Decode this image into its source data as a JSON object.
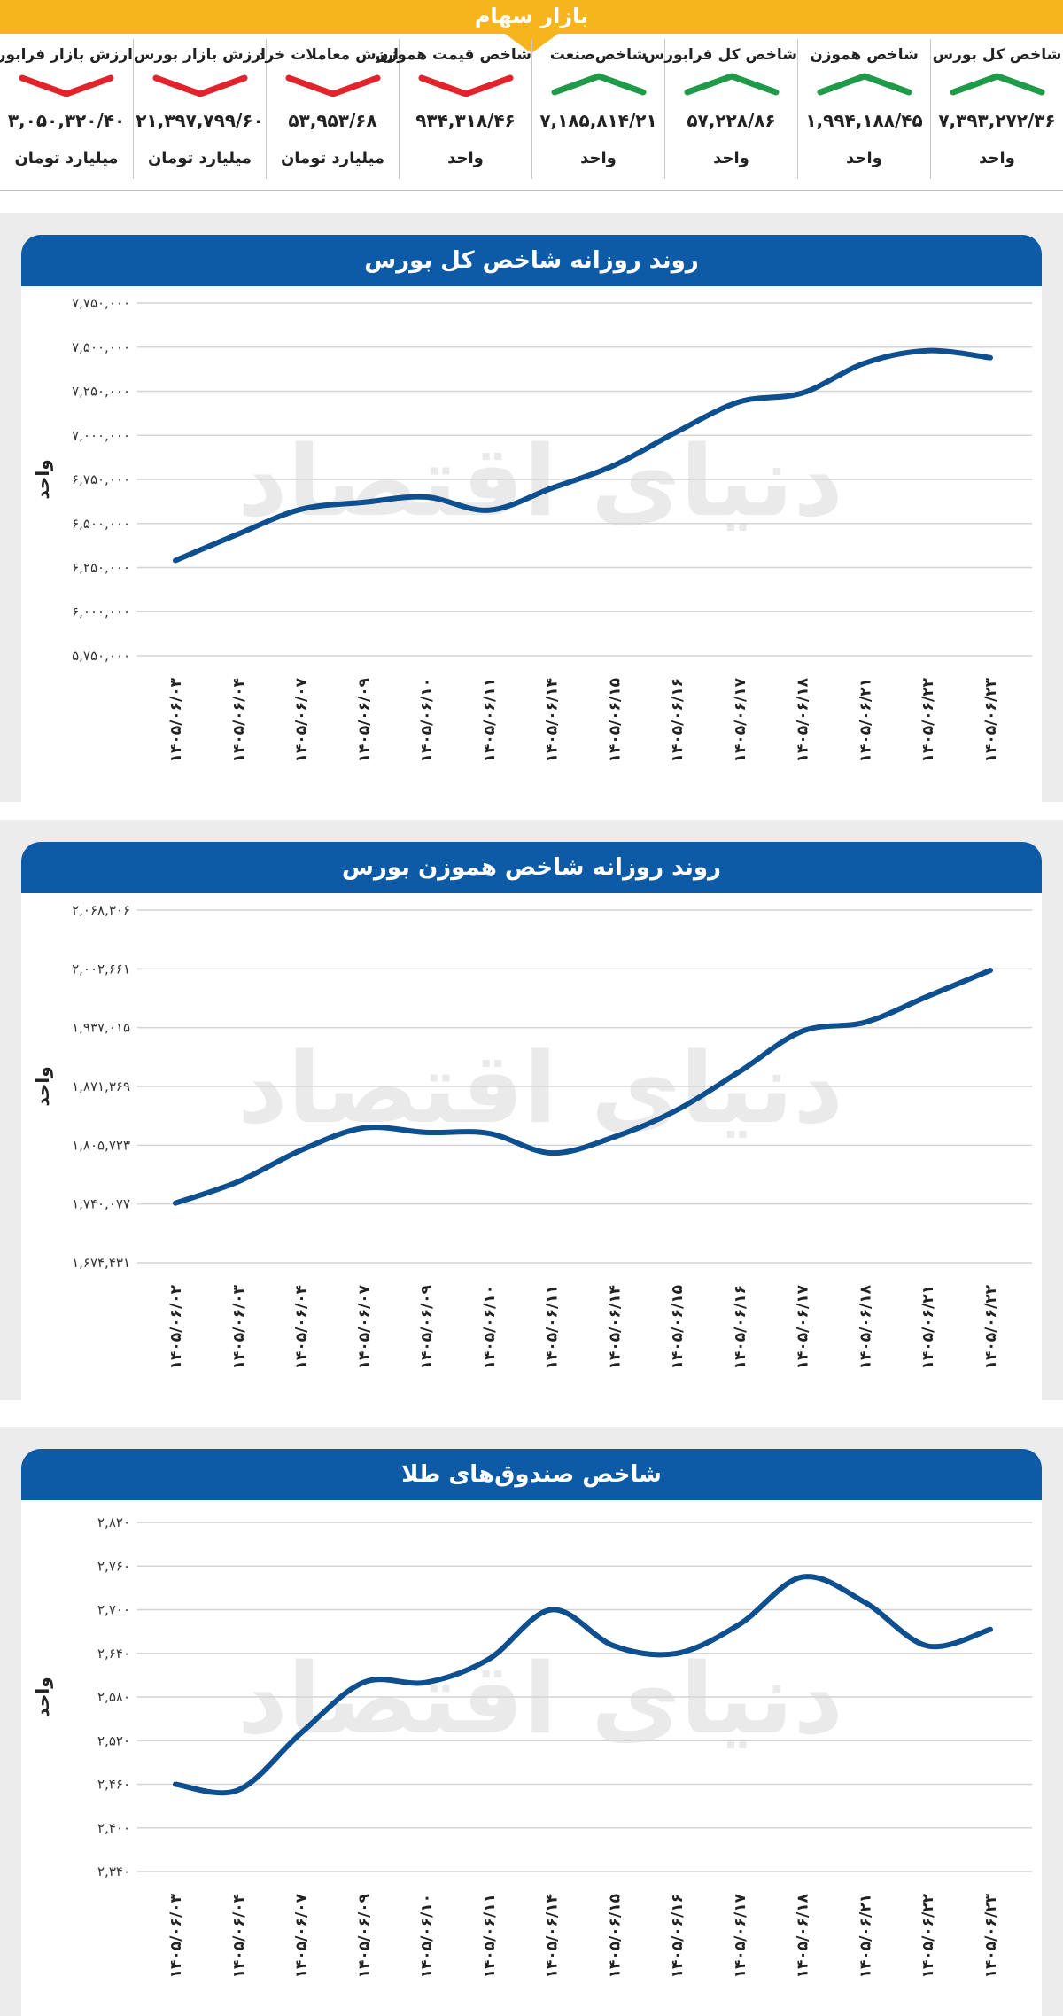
{
  "header": {
    "title": "بازار سهام",
    "accent": "#f7b51d"
  },
  "stats": [
    {
      "label": "شاخص کل بورس",
      "value": "۷,۳۹۳,۲۷۲/۳۶",
      "unit": "واحد",
      "trend": "up"
    },
    {
      "label": "شاخص هموزن",
      "value": "۱,۹۹۴,۱۸۸/۴۵",
      "unit": "واحد",
      "trend": "up"
    },
    {
      "label": "شاخص کل فرابورس",
      "value": "۵۷,۲۲۸/۸۶",
      "unit": "واحد",
      "trend": "up"
    },
    {
      "label": "شاخص‌صنعت",
      "value": "۷,۱۸۵,۸۱۴/۲۱",
      "unit": "واحد",
      "trend": "up"
    },
    {
      "label": "شاخص قیمت هموزن",
      "value": "۹۳۴,۳۱۸/۴۶",
      "unit": "واحد",
      "trend": "down"
    },
    {
      "label": "ارزش معاملات خرد",
      "value": "۵۳,۹۵۳/۶۸",
      "unit": "میلیارد تومان",
      "trend": "down"
    },
    {
      "label": "ارزش بازار بورس",
      "value": "۲۱,۳۹۷,۷۹۹/۶۰",
      "unit": "میلیارد تومان",
      "trend": "down"
    },
    {
      "label": "ارزش بازار فرابورس",
      "value": "۳,۰۵۰,۳۲۰/۴۰",
      "unit": "میلیارد تومان",
      "trend": "down"
    }
  ],
  "colors": {
    "up": "#1f9a48",
    "down": "#e3232b",
    "line": "#0d4f8f",
    "title_bar": "#0d5aa7",
    "panel_bg": "#ececec",
    "grid": "#d4d4d4"
  },
  "watermark": "دنیای اقتصاد",
  "chart_data": [
    {
      "type": "line",
      "title": "روند روزانه شاخص کل بورس",
      "ylabel": "واحد",
      "ylim": [
        5750000,
        7750000
      ],
      "yticks": [
        5750000,
        6000000,
        6250000,
        6500000,
        6750000,
        7000000,
        7250000,
        7500000,
        7750000
      ],
      "ytick_labels": [
        "۵,۷۵۰,۰۰۰",
        "۶,۰۰۰,۰۰۰",
        "۶,۲۵۰,۰۰۰",
        "۶,۵۰۰,۰۰۰",
        "۶,۷۵۰,۰۰۰",
        "۷,۰۰۰,۰۰۰",
        "۷,۲۵۰,۰۰۰",
        "۷,۵۰۰,۰۰۰",
        "۷,۷۵۰,۰۰۰"
      ],
      "categories": [
        "۱۴۰۵/۰۶/۰۳",
        "۱۴۰۵/۰۶/۰۴",
        "۱۴۰۵/۰۶/۰۷",
        "۱۴۰۵/۰۶/۰۹",
        "۱۴۰۵/۰۶/۱۰",
        "۱۴۰۵/۰۶/۱۱",
        "۱۴۰۵/۰۶/۱۴",
        "۱۴۰۵/۰۶/۱۵",
        "۱۴۰۵/۰۶/۱۶",
        "۱۴۰۵/۰۶/۱۷",
        "۱۴۰۵/۰۶/۱۸",
        "۱۴۰۵/۰۶/۲۱",
        "۱۴۰۵/۰۶/۲۲",
        "۱۴۰۵/۰۶/۲۳"
      ],
      "values": [
        6290000,
        6440000,
        6580000,
        6620000,
        6650000,
        6575000,
        6700000,
        6830000,
        7020000,
        7190000,
        7240000,
        7410000,
        7480000,
        7440000
      ]
    },
    {
      "type": "line",
      "title": "روند روزانه شاخص هموزن بورس",
      "ylabel": "واحد",
      "ylim": [
        1674431,
        2068306
      ],
      "yticks": [
        1674431,
        1740077,
        1805723,
        1871369,
        1937015,
        2002661,
        2068306
      ],
      "ytick_labels": [
        "۱,۶۷۴,۴۳۱",
        "۱,۷۴۰,۰۷۷",
        "۱,۸۰۵,۷۲۳",
        "۱,۸۷۱,۳۶۹",
        "۱,۹۳۷,۰۱۵",
        "۲,۰۰۲,۶۶۱",
        "۲,۰۶۸,۳۰۶"
      ],
      "categories": [
        "۱۴۰۵/۰۶/۰۲",
        "۱۴۰۵/۰۶/۰۳",
        "۱۴۰۵/۰۶/۰۴",
        "۱۴۰۵/۰۶/۰۷",
        "۱۴۰۵/۰۶/۰۹",
        "۱۴۰۵/۰۶/۱۰",
        "۱۴۰۵/۰۶/۱۱",
        "۱۴۰۵/۰۶/۱۴",
        "۱۴۰۵/۰۶/۱۵",
        "۱۴۰۵/۰۶/۱۶",
        "۱۴۰۵/۰۶/۱۷",
        "۱۴۰۵/۰۶/۱۸",
        "۱۴۰۵/۰۶/۲۱",
        "۱۴۰۵/۰۶/۲۲"
      ],
      "values": [
        1741000,
        1765000,
        1800000,
        1825000,
        1820000,
        1819000,
        1797000,
        1815000,
        1845000,
        1888000,
        1933000,
        1943000,
        1972000,
        2001000
      ]
    },
    {
      "type": "line",
      "title": "شاخص صندوق‌های طلا",
      "ylabel": "واحد",
      "ylim": [
        2340,
        2820
      ],
      "yticks": [
        2340,
        2400,
        2460,
        2520,
        2580,
        2640,
        2700,
        2760,
        2820
      ],
      "ytick_labels": [
        "۲,۳۴۰",
        "۲,۴۰۰",
        "۲,۴۶۰",
        "۲,۵۲۰",
        "۲,۵۸۰",
        "۲,۶۴۰",
        "۲,۷۰۰",
        "۲,۷۶۰",
        "۲,۸۲۰"
      ],
      "categories": [
        "۱۴۰۵/۰۶/۰۳",
        "۱۴۰۵/۰۶/۰۴",
        "۱۴۰۵/۰۶/۰۷",
        "۱۴۰۵/۰۶/۰۹",
        "۱۴۰۵/۰۶/۱۰",
        "۱۴۰۵/۰۶/۱۱",
        "۱۴۰۵/۰۶/۱۴",
        "۱۴۰۵/۰۶/۱۵",
        "۱۴۰۵/۰۶/۱۶",
        "۱۴۰۵/۰۶/۱۷",
        "۱۴۰۵/۰۶/۱۸",
        "۱۴۰۵/۰۶/۲۱",
        "۱۴۰۵/۰۶/۲۲",
        "۱۴۰۵/۰۶/۲۳"
      ],
      "values": [
        2460,
        2452,
        2530,
        2600,
        2600,
        2632,
        2700,
        2650,
        2640,
        2680,
        2745,
        2710,
        2650,
        2673
      ]
    }
  ]
}
